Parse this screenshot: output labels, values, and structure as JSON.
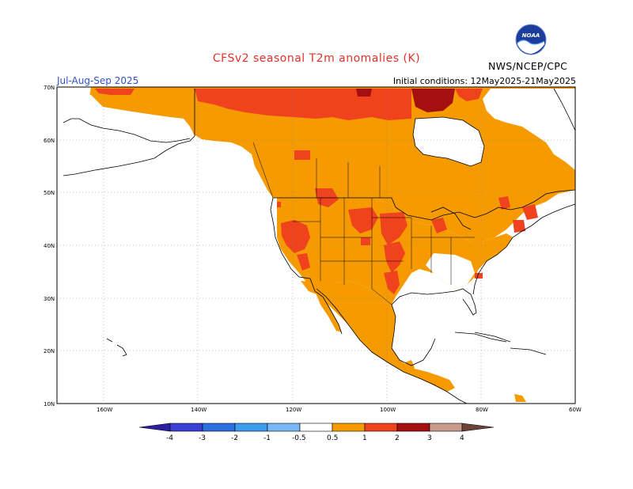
{
  "header": {
    "title": "CFSv2 seasonal T2m anomalies (K)",
    "period": "Jul-Aug-Sep 2025",
    "initial_conditions": "Initial conditions: 12May2025-21May2025",
    "agency": "NWS/NCEP/CPC",
    "logo_text": "NOAA"
  },
  "axes": {
    "lat_labels": [
      "70N",
      "60N",
      "50N",
      "40N",
      "30N",
      "20N",
      "10N"
    ],
    "lon_labels": [
      "160W",
      "140W",
      "120W",
      "100W",
      "80W",
      "60W"
    ]
  },
  "colorbar": {
    "labels": [
      "-4",
      "-3",
      "-2",
      "-1",
      "-0.5",
      "0.5",
      "1",
      "2",
      "3",
      "4"
    ],
    "colors": [
      "#2d20a0",
      "#3a3ed4",
      "#2c6fe0",
      "#3f9bee",
      "#7ab7f4",
      "#ffffff",
      "#f59a00",
      "#f0421c",
      "#a50f0f",
      "#c99a8e",
      "#6a4438"
    ]
  },
  "anomaly_colors": {
    "0.5-1": "#f59a00",
    "1-2": "#f0421c",
    "2-3": "#a50f0f"
  }
}
